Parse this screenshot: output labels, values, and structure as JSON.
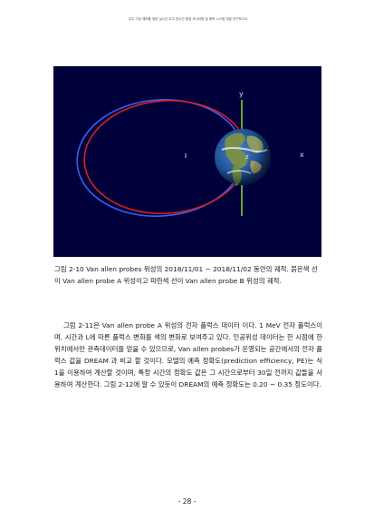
{
  "header": "우주 기상 예보를 위한 실시간 우주 방사선 환경 모니터링 및 예측 시스템 개발 연구보고서",
  "figure": {
    "axis_x": "x",
    "axis_y": "y",
    "axis_z": "z",
    "colors": {
      "background": "#00003a",
      "red_orbit": "#d62020",
      "blue_orbit": "#3a5ef0",
      "axis_line": "#9be23a"
    }
  },
  "caption": "그림 2-10 Van allen probes 위성의 2018/11/01 ~ 2018/11/02 동안의 궤적. 붉은색 선이 Van allen probe A 위성이고 파란색 선이 Van allen probe B 위성의 궤적.",
  "body": {
    "p1": "그림 2-11은 Van allen probe A 위성의 전자 플럭스 데이터 이다. 1 MeV 전자 플럭스이며, 시간과 L에 따른 플럭스 변화를 색의 변화로 보여주고 있다. 인공위성 데이터는 한 시점에 한 위치에서만 관측데이터를 얻을 수 있으므로, Van allen probes가 운영되는 공간에서의 전자 플럭스 값을 DREAM 과 비교 할 것이다. 모델의 예측 정확도(prediction efficiency, PE)는 식 1을 이용하여 계산할 것이며, 특정 시간의 정확도 값은 그 시간으로부터 30일 전까지 값들을 사용하여 계산한다. 그림 2-12에 알 수 있듯이 DREAM의 예측 정확도는 0.20 ~ 0.35 정도이다."
  },
  "page_number": "- 28 -"
}
